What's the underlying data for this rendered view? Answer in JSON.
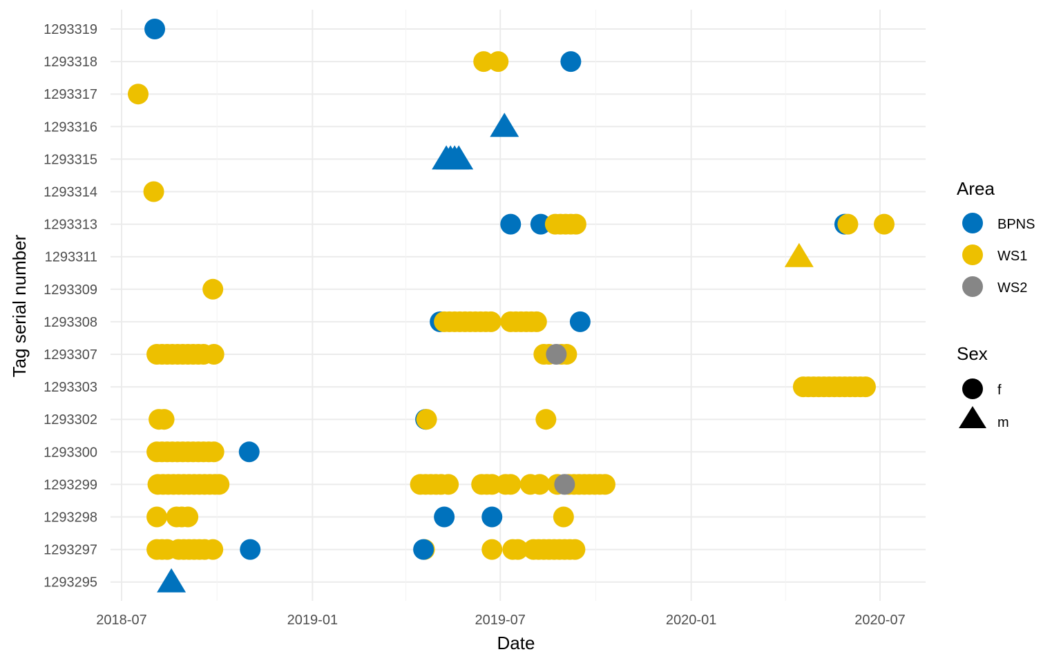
{
  "chart_data": {
    "type": "scatter",
    "xlabel": "Date",
    "ylabel": "Tag serial number",
    "xlim": [
      "2018-07-01",
      "2020-07-31"
    ],
    "x_ticks": [
      "2018-07",
      "2019-01",
      "2019-07",
      "2020-01",
      "2020-07"
    ],
    "x_minor_ticks": [
      "2018-10",
      "2019-04",
      "2019-10",
      "2020-04"
    ],
    "y_categories": [
      "1293319",
      "1293318",
      "1293317",
      "1293316",
      "1293315",
      "1293314",
      "1293313",
      "1293311",
      "1293309",
      "1293308",
      "1293307",
      "1293303",
      "1293302",
      "1293300",
      "1293299",
      "1293298",
      "1293297",
      "1293295"
    ],
    "grid": true,
    "colors": {
      "BPNS": "#0072BD",
      "WS1": "#EDC000",
      "WS2": "#868686",
      "grid": "#ebebeb"
    },
    "legend": {
      "placement": "right",
      "area_title": "Area",
      "area_entries": [
        "BPNS",
        "WS1",
        "WS2"
      ],
      "sex_title": "Sex",
      "sex_entries": [
        "f",
        "m"
      ]
    },
    "points": [
      {
        "tag": "1293319",
        "area": "BPNS",
        "sex": "f",
        "dates": [
          "2018-08-02"
        ]
      },
      {
        "tag": "1293318",
        "area": "WS1",
        "sex": "f",
        "dates": [
          "2019-06-15",
          "2019-06-29"
        ]
      },
      {
        "tag": "1293318",
        "area": "BPNS",
        "sex": "f",
        "dates": [
          "2019-09-07"
        ]
      },
      {
        "tag": "1293317",
        "area": "WS1",
        "sex": "f",
        "dates": [
          "2018-07-17"
        ]
      },
      {
        "tag": "1293316",
        "area": "BPNS",
        "sex": "m",
        "dates": [
          "2019-07-05"
        ]
      },
      {
        "tag": "1293315",
        "area": "BPNS",
        "sex": "m",
        "dates": [
          "2019-05-10",
          "2019-05-14",
          "2019-05-18",
          "2019-05-22"
        ]
      },
      {
        "tag": "1293314",
        "area": "WS1",
        "sex": "f",
        "dates": [
          "2018-08-01"
        ]
      },
      {
        "tag": "1293313",
        "area": "BPNS",
        "sex": "f",
        "dates": [
          "2019-07-11",
          "2019-08-09",
          "2020-05-28"
        ]
      },
      {
        "tag": "1293313",
        "area": "WS1",
        "sex": "f",
        "dates": [
          "2019-08-23",
          "2019-08-28",
          "2019-09-02",
          "2019-09-07",
          "2019-09-12",
          "2020-05-31",
          "2020-07-05"
        ]
      },
      {
        "tag": "1293311",
        "area": "WS1",
        "sex": "m",
        "dates": [
          "2020-04-14"
        ]
      },
      {
        "tag": "1293309",
        "area": "WS1",
        "sex": "f",
        "dates": [
          "2018-09-27"
        ]
      },
      {
        "tag": "1293308",
        "area": "BPNS",
        "sex": "f",
        "dates": [
          "2019-05-04",
          "2019-09-16"
        ]
      },
      {
        "tag": "1293308",
        "area": "WS1",
        "sex": "f",
        "dates": [
          "2019-05-08",
          "2019-05-13",
          "2019-05-18",
          "2019-05-23",
          "2019-05-28",
          "2019-06-02",
          "2019-06-07",
          "2019-06-12",
          "2019-06-17",
          "2019-06-22",
          "2019-07-11",
          "2019-07-16",
          "2019-07-21",
          "2019-07-26",
          "2019-07-31",
          "2019-08-05"
        ]
      },
      {
        "tag": "1293307",
        "area": "WS1",
        "sex": "f",
        "dates": [
          "2018-08-04",
          "2018-08-09",
          "2018-08-14",
          "2018-08-19",
          "2018-08-24",
          "2018-08-29",
          "2018-09-03",
          "2018-09-08",
          "2018-09-13",
          "2018-09-18",
          "2018-09-28",
          "2019-08-12",
          "2019-08-17",
          "2019-08-29",
          "2019-09-03"
        ]
      },
      {
        "tag": "1293307",
        "area": "WS2",
        "sex": "f",
        "dates": [
          "2019-08-24"
        ]
      },
      {
        "tag": "1293303",
        "area": "WS1",
        "sex": "f",
        "dates": [
          "2020-04-18",
          "2020-04-23",
          "2020-04-28",
          "2020-05-03",
          "2020-05-08",
          "2020-05-13",
          "2020-05-18",
          "2020-05-23",
          "2020-05-28",
          "2020-06-02",
          "2020-06-07",
          "2020-06-12",
          "2020-06-17"
        ]
      },
      {
        "tag": "1293302",
        "area": "BPNS",
        "sex": "f",
        "dates": [
          "2019-04-20"
        ]
      },
      {
        "tag": "1293302",
        "area": "WS1",
        "sex": "f",
        "dates": [
          "2018-08-06",
          "2018-08-11",
          "2019-04-21",
          "2019-08-14"
        ]
      },
      {
        "tag": "1293300",
        "area": "WS1",
        "sex": "f",
        "dates": [
          "2018-08-04",
          "2018-08-09",
          "2018-08-14",
          "2018-08-19",
          "2018-08-24",
          "2018-08-29",
          "2018-09-03",
          "2018-09-08",
          "2018-09-13",
          "2018-09-18",
          "2018-09-23",
          "2018-09-28"
        ]
      },
      {
        "tag": "1293300",
        "area": "BPNS",
        "sex": "f",
        "dates": [
          "2018-11-01"
        ]
      },
      {
        "tag": "1293299",
        "area": "WS1",
        "sex": "f",
        "dates": [
          "2018-08-05",
          "2018-08-10",
          "2018-08-15",
          "2018-08-20",
          "2018-08-25",
          "2018-08-30",
          "2018-09-04",
          "2018-09-09",
          "2018-09-14",
          "2018-09-19",
          "2018-09-24",
          "2018-09-29",
          "2018-10-03",
          "2019-04-15",
          "2019-04-20",
          "2019-04-25",
          "2019-04-30",
          "2019-05-05",
          "2019-05-12",
          "2019-06-13",
          "2019-06-18",
          "2019-06-23",
          "2019-07-06",
          "2019-07-11",
          "2019-07-30",
          "2019-08-08",
          "2019-08-25",
          "2019-09-05",
          "2019-09-10",
          "2019-09-15",
          "2019-09-20",
          "2019-09-25",
          "2019-09-30",
          "2019-10-05",
          "2019-10-10"
        ]
      },
      {
        "tag": "1293299",
        "area": "WS2",
        "sex": "f",
        "dates": [
          "2019-09-01"
        ]
      },
      {
        "tag": "1293298",
        "area": "WS1",
        "sex": "f",
        "dates": [
          "2018-08-04",
          "2018-08-23",
          "2018-08-28",
          "2018-09-03",
          "2019-08-31"
        ]
      },
      {
        "tag": "1293298",
        "area": "BPNS",
        "sex": "f",
        "dates": [
          "2019-05-08",
          "2019-06-23"
        ]
      },
      {
        "tag": "1293297",
        "area": "WS1",
        "sex": "f",
        "dates": [
          "2018-08-04",
          "2018-08-09",
          "2018-08-14",
          "2018-08-25",
          "2018-08-30",
          "2018-09-04",
          "2018-09-09",
          "2018-09-14",
          "2018-09-19",
          "2018-09-27",
          "2019-04-19",
          "2019-06-23",
          "2019-07-13",
          "2019-07-18",
          "2019-08-02",
          "2019-08-07",
          "2019-08-12",
          "2019-08-17",
          "2019-08-22",
          "2019-08-27",
          "2019-09-01",
          "2019-09-06",
          "2019-09-11"
        ]
      },
      {
        "tag": "1293297",
        "area": "BPNS",
        "sex": "f",
        "dates": [
          "2018-11-02",
          "2019-04-18"
        ]
      },
      {
        "tag": "1293295",
        "area": "BPNS",
        "sex": "m",
        "dates": [
          "2018-08-18"
        ]
      }
    ]
  }
}
